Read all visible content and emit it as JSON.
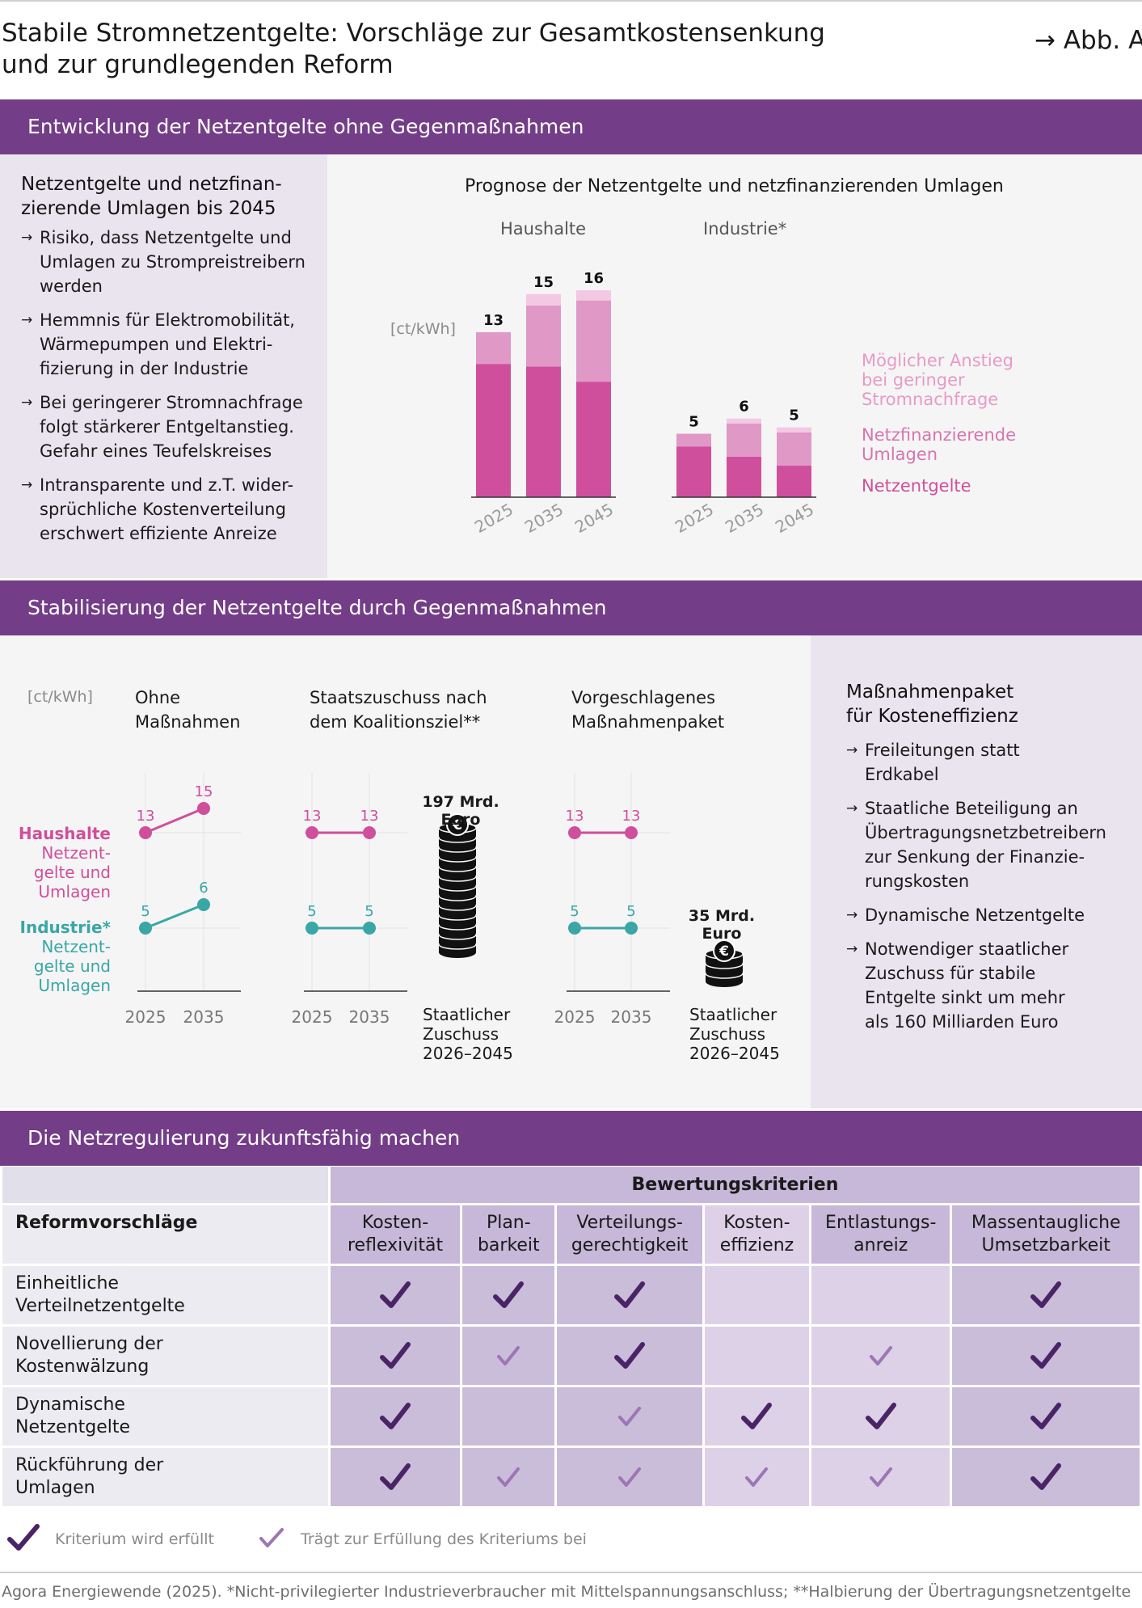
{
  "header": {
    "title_line1": "Stabile Stromnetzentgelte: Vorschläge zur Gesamtkostensenkung",
    "title_line2": "und zur grundlegenden Reform",
    "figure_ref": "→ Abb. A"
  },
  "section1": {
    "band_title": "Entwicklung der Netzentgelte ohne Gegenmaßnahmen",
    "left_heading_line1": "Netzentgelte und netzfinan-",
    "left_heading_line2": "zierende Umlagen bis 2045",
    "bullets": [
      [
        "Risiko, dass Netzentgelte und",
        "Umlagen zu Strompreistreibern",
        "werden"
      ],
      [
        "Hemmnis für Elektromobilität,",
        "Wärmepumpen und Elektri-",
        "fizierung in der Industrie"
      ],
      [
        "Bei geringerer Stromnachfrage",
        "folgt stärkerer Entgeltanstieg.",
        "Gefahr eines Teufelskreises"
      ],
      [
        "Intransparente und z.T. wider-",
        "sprüchliche Kostenverteilung",
        "erschwert effiziente Anreize"
      ]
    ],
    "chart_title": "Prognose der Netzentgelte und netzfinanzierenden Umlagen",
    "unit": "[ct/kWh]",
    "legend": {
      "anstieg": [
        "Möglicher Anstieg",
        "bei geringer",
        "Stromnachfrage"
      ],
      "umlagen": [
        "Netzfinanzierende",
        "Umlagen"
      ],
      "netzentgelte": "Netzentgelte"
    },
    "colors": {
      "netzentgelte": "#cf4f9c",
      "umlagen": "#e098c6",
      "anstieg": "#f3c8e2",
      "band": "#743d88"
    }
  },
  "chart_data": [
    {
      "type": "bar",
      "title": "Prognose der Netzentgelte und netzfinanzierenden Umlagen",
      "subtitle": "Haushalte",
      "ylabel": "[ct/kWh]",
      "categories": [
        "2025",
        "2035",
        "2045"
      ],
      "series": [
        {
          "name": "Netzentgelte",
          "values": [
            10.5,
            10.3,
            9.1
          ]
        },
        {
          "name": "Netzfinanzierende Umlagen",
          "values": [
            2.5,
            4.8,
            6.4
          ]
        },
        {
          "name": "Möglicher Anstieg bei geringer Stromnachfrage",
          "values": [
            0,
            0.9,
            0.8
          ]
        }
      ],
      "labels": [
        "13",
        "15",
        "16"
      ]
    },
    {
      "type": "bar",
      "subtitle": "Industrie*",
      "ylabel": "[ct/kWh]",
      "categories": [
        "2025",
        "2035",
        "2045"
      ],
      "series": [
        {
          "name": "Netzentgelte",
          "values": [
            4.0,
            3.2,
            2.5
          ]
        },
        {
          "name": "Netzfinanzierende Umlagen",
          "values": [
            1.0,
            2.6,
            2.6
          ]
        },
        {
          "name": "Möglicher Anstieg bei geringer Stromnachfrage",
          "values": [
            0,
            0.4,
            0.4
          ]
        }
      ],
      "labels": [
        "5",
        "6",
        "5"
      ]
    },
    {
      "type": "line",
      "title": "Ohne Maßnahmen",
      "ylabel": "[ct/kWh]",
      "x": [
        "2025",
        "2035"
      ],
      "series": [
        {
          "name": "Haushalte",
          "values": [
            13,
            15
          ]
        },
        {
          "name": "Industrie*",
          "values": [
            5,
            6
          ]
        }
      ]
    },
    {
      "type": "line",
      "title": "Staatszuschuss nach dem Koalitionsziel**",
      "x": [
        "2025",
        "2035"
      ],
      "series": [
        {
          "name": "Haushalte",
          "values": [
            13,
            13
          ]
        },
        {
          "name": "Industrie*",
          "values": [
            5,
            5
          ]
        }
      ]
    },
    {
      "type": "line",
      "title": "Vorgeschlagenes Maßnahmenpaket",
      "x": [
        "2025",
        "2035"
      ],
      "series": [
        {
          "name": "Haushalte",
          "values": [
            13,
            13
          ]
        },
        {
          "name": "Industrie*",
          "values": [
            5,
            5
          ]
        }
      ]
    }
  ],
  "section2": {
    "band_title": "Stabilisierung der Netzentgelte durch Gegenmaßnahmen",
    "unit": "[ct/kWh]",
    "col1_title": [
      "Ohne",
      "Maßnahmen"
    ],
    "col2_title": [
      "Staatszuschuss nach",
      "dem Koalitionsziel**"
    ],
    "col3_title": [
      "Vorgeschlagenes",
      "Maßnahmenpaket"
    ],
    "legend_haushalte": [
      "Haushalte",
      "Netzent-",
      "gelte und",
      "Umlagen"
    ],
    "legend_industrie": [
      "Industrie*",
      "Netzent-",
      "gelte und",
      "Umlagen"
    ],
    "years": [
      "2025",
      "2035"
    ],
    "subsidy1": {
      "amount": [
        "197 Mrd.",
        "Euro"
      ],
      "caption": [
        "Staatlicher",
        "Zuschuss",
        "2026–2045"
      ],
      "coins": 13
    },
    "subsidy2": {
      "amount": [
        "35 Mrd.",
        "Euro"
      ],
      "caption": [
        "Staatlicher",
        "Zuschuss",
        "2026–2045"
      ],
      "coins": 3
    },
    "coin_symbol": "€",
    "colors": {
      "haushalte": "#cf4f9c",
      "industrie": "#3aa6a6"
    },
    "right_heading": [
      "Maßnahmenpaket",
      "für Kosteneffizienz"
    ],
    "right_bullets": [
      [
        "Freileitungen statt",
        "Erdkabel"
      ],
      [
        "Staatliche Beteiligung an",
        "Übertragungsnetzbetreibern",
        "zur Senkung der Finanzie-",
        "rungskosten"
      ],
      [
        "Dynamische Netzentgelte"
      ],
      [
        "Notwendiger staatlicher",
        "Zuschuss für stabile",
        "Entgelte sinkt um mehr",
        "als 160 Milliarden Euro"
      ]
    ]
  },
  "section3": {
    "band_title": "Die Netzregulierung zukunftsfähig machen",
    "criteria_header": "Bewertungskriterien",
    "row_header": "Reformvorschläge",
    "criteria": [
      [
        "Kosten-",
        "reflexivität"
      ],
      [
        "Plan-",
        "barkeit"
      ],
      [
        "Verteilungs-",
        "gerechtigkeit"
      ],
      [
        "Kosten-",
        "effizienz"
      ],
      [
        "Entlastungs-",
        "anreiz"
      ],
      [
        "Massentaugliche",
        "Umsetzbarkeit"
      ]
    ],
    "rows": [
      {
        "label": [
          "Einheitliche",
          "Verteilnetzentgelte"
        ],
        "marks": [
          "full",
          "full",
          "full",
          "none",
          "none",
          "full"
        ]
      },
      {
        "label": [
          "Novellierung der",
          "Kostenwälzung"
        ],
        "marks": [
          "full",
          "partial",
          "full",
          "none",
          "partial",
          "full"
        ]
      },
      {
        "label": [
          "Dynamische",
          "Netzentgelte"
        ],
        "marks": [
          "full",
          "none",
          "partial",
          "full",
          "full",
          "full"
        ]
      },
      {
        "label": [
          "Rückführung der",
          "Umlagen"
        ],
        "marks": [
          "full",
          "partial",
          "partial",
          "partial",
          "partial",
          "full"
        ]
      }
    ],
    "legend_full": "Kriterium wird erfüllt",
    "legend_partial": "Trägt zur Erfüllung des Kriteriums bei",
    "colors": {
      "full": "#4a2466",
      "partial": "#9d76b5"
    }
  },
  "footer": "Agora Energiewende (2025). *Nicht-privilegierter Industrieverbraucher mit Mittelspannungsanschluss; **Halbierung der Übertragungsnetzentgelte"
}
